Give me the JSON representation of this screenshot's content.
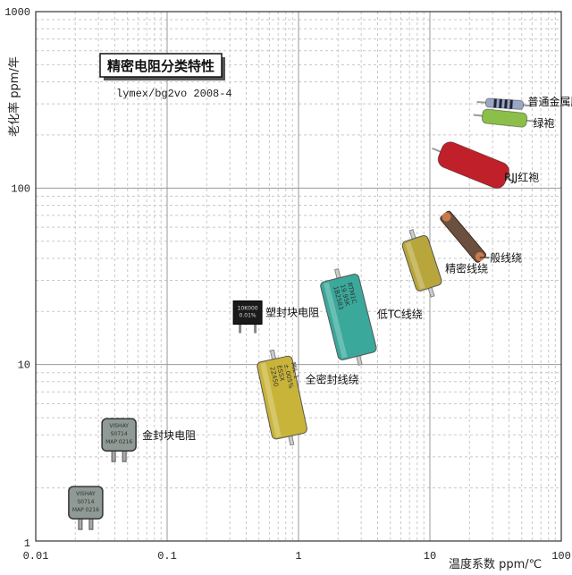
{
  "chart_data": {
    "type": "scatter",
    "title": "精密电阻分类特性",
    "subtitle": "lymex/bg2vo 2008-4",
    "xlabel": "温度系数 ppm/℃",
    "ylabel": "老化率 ppm/年",
    "xscale": "log",
    "yscale": "log",
    "xlim": [
      0.01,
      100
    ],
    "ylim": [
      1,
      1000
    ],
    "x_ticks": [
      "0.01",
      "0.1",
      "1",
      "10",
      "100"
    ],
    "y_ticks": [
      "1",
      "10",
      "100",
      "1000"
    ],
    "grid": true,
    "points": [
      {
        "label": "",
        "x": 0.024,
        "y": 1.65,
        "kind": "metal-can",
        "color": "#8f9a95",
        "marking": [
          "VISHAY",
          "S0714",
          "MAP 0216"
        ]
      },
      {
        "label": "金封块电阻",
        "x": 0.043,
        "y": 4.0,
        "kind": "metal-can",
        "color": "#8f9a95",
        "marking": [
          "VISHAY",
          "S0714",
          "MAP 0216"
        ]
      },
      {
        "label": "塑封块电阻",
        "x": 0.41,
        "y": 19.7,
        "kind": "plastic-block",
        "color": "#1a1a1a",
        "marking": [
          "10K000",
          "0.01%"
        ]
      },
      {
        "label": "全密封线绕",
        "x": 0.75,
        "y": 6.5,
        "kind": "cylinder",
        "color": "#c9b43a",
        "marking": [
          "2Z450",
          "ESSX",
          "±.005%",
          "MIL 1"
        ]
      },
      {
        "label": "低TC线绕",
        "x": 2.4,
        "y": 18.6,
        "kind": "cylinder",
        "color": "#3aa89a",
        "marking": [
          "1B2583",
          "19.95K",
          "RTM1C"
        ]
      },
      {
        "label": "精密线绕",
        "x": 8.7,
        "y": 37.5,
        "kind": "cylinder",
        "color": "#b8a63c",
        "marking": []
      },
      {
        "label": "一般线绕",
        "x": 17.9,
        "y": 53,
        "kind": "flat-wirewound",
        "color": "#6b5040",
        "marking": []
      },
      {
        "label": "RJJ红袍",
        "x": 21.5,
        "y": 135,
        "kind": "axial",
        "color": "#c0202a",
        "marking": []
      },
      {
        "label": "绿袍",
        "x": 37,
        "y": 249,
        "kind": "axial",
        "color": "#8cbf4a",
        "marking": []
      },
      {
        "label": "普通金属膜",
        "x": 37,
        "y": 300,
        "kind": "axial-small",
        "color": "#9aa6c4",
        "marking": []
      }
    ]
  }
}
